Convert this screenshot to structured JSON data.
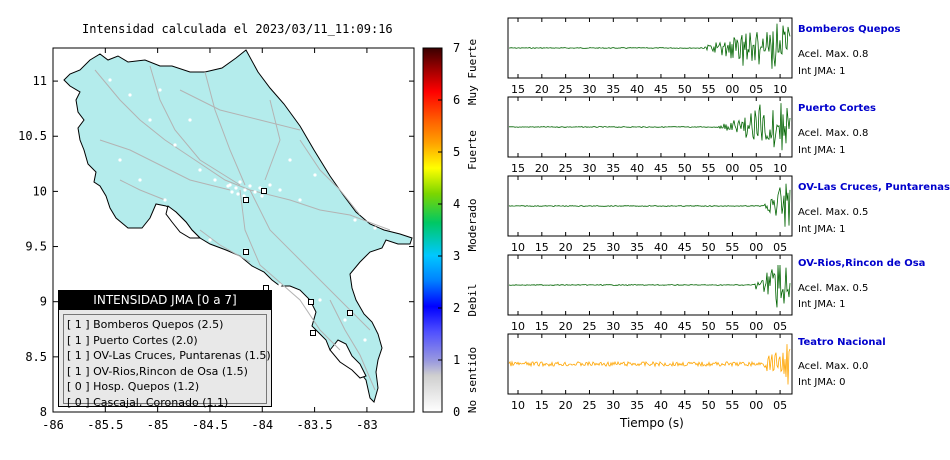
{
  "map": {
    "title": "Intensidad calculada el 2023/03/11_11:09:16",
    "x_ticks": [
      "-86",
      "-85.5",
      "-85",
      "-84.5",
      "-84",
      "-83.5",
      "-83"
    ],
    "y_ticks": [
      "11",
      "10.5",
      "10",
      "9.5",
      "9",
      "8.5",
      "8"
    ],
    "legend_title": "INTENSIDAD JMA [0 a 7]",
    "legend_items": [
      {
        "text": "[ 1 ]  Bomberos Quepos (2.5)"
      },
      {
        "text": "[ 1 ]  Puerto Cortes (2.0)"
      },
      {
        "text": "[ 1 ]  OV-Las Cruces, Puntarenas (1.5)"
      },
      {
        "text": "[ 1 ]  OV-Rios,Rincon de Osa (1.5)"
      },
      {
        "text": "[ 0 ]  Hosp. Quepos (1.2)"
      },
      {
        "text": "[ 0 ]  Cascajal, Coronado (1.1)"
      }
    ],
    "colors": {
      "land": "#b4ecec",
      "sea": "#ffffff",
      "roads": "#b3b3b3"
    }
  },
  "colorbar": {
    "ticks": [
      "0",
      "1",
      "2",
      "3",
      "4",
      "5",
      "6",
      "7"
    ],
    "labels": [
      "No sentido",
      "Debil",
      "Moderado",
      "Fuerte",
      "Muy Fuerte"
    ]
  },
  "chart_data": [
    {
      "type": "choropleth-map",
      "title": "Intensidad calculada el 2023/03/11_11:09:16",
      "xlim": [
        -86,
        -82.55
      ],
      "ylim": [
        8,
        11.3
      ],
      "colorbar_range": [
        0,
        7
      ],
      "stations": [
        {
          "name": "Bomberos Quepos",
          "intensity_class": 1,
          "value": 2.5
        },
        {
          "name": "Puerto Cortes",
          "intensity_class": 1,
          "value": 2.0
        },
        {
          "name": "OV-Las Cruces, Puntarenas",
          "intensity_class": 1,
          "value": 1.5
        },
        {
          "name": "OV-Rios,Rincon de Osa",
          "intensity_class": 1,
          "value": 1.5
        },
        {
          "name": "Hosp. Quepos",
          "intensity_class": 0,
          "value": 1.2
        },
        {
          "name": "Cascajal, Coronado",
          "intensity_class": 0,
          "value": 1.1
        }
      ]
    },
    {
      "type": "line",
      "xlabel": "Tiempo (s)",
      "series": [
        {
          "name": "Bomberos Quepos",
          "acel_label": "Acel. Max. 0.8",
          "int_label": "Int JMA: 1",
          "ticks": [
            "15",
            "20",
            "25",
            "30",
            "35",
            "40",
            "45",
            "50",
            "55",
            "00",
            "05",
            "10"
          ],
          "onset_fraction": 0.68,
          "color": "#006400"
        },
        {
          "name": "Puerto Cortes",
          "acel_label": "Acel. Max. 0.8",
          "int_label": "Int JMA: 1",
          "ticks": [
            "15",
            "20",
            "25",
            "30",
            "35",
            "40",
            "45",
            "50",
            "55",
            "00",
            "05",
            "10"
          ],
          "onset_fraction": 0.74,
          "color": "#006400"
        },
        {
          "name": "OV-Las Cruces, Puntarenas",
          "acel_label": "Acel. Max. 0.5",
          "int_label": "Int JMA: 1",
          "ticks": [
            "10",
            "15",
            "20",
            "25",
            "30",
            "35",
            "40",
            "45",
            "50",
            "55",
            "00",
            "05"
          ],
          "onset_fraction": 0.9,
          "color": "#006400"
        },
        {
          "name": "OV-Rios,Rincon de Osa",
          "acel_label": "Acel. Max. 0.5",
          "int_label": "Int JMA: 1",
          "ticks": [
            "10",
            "15",
            "20",
            "25",
            "30",
            "35",
            "40",
            "45",
            "50",
            "55",
            "00",
            "05"
          ],
          "onset_fraction": 0.86,
          "color": "#006400"
        },
        {
          "name": "Teatro Nacional",
          "acel_label": "Acel. Max. 0.0",
          "int_label": "Int JMA: 0",
          "ticks": [
            "10",
            "15",
            "20",
            "25",
            "30",
            "35",
            "40",
            "45",
            "50",
            "55",
            "00",
            "05"
          ],
          "onset_fraction": 0.9,
          "color": "#ffa500"
        }
      ]
    }
  ]
}
